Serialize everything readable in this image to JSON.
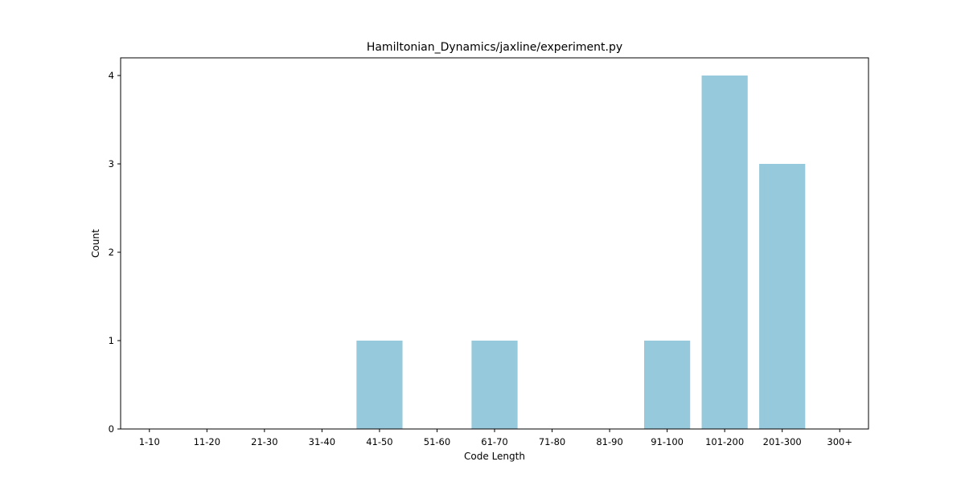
{
  "chart_data": {
    "type": "bar",
    "title": "Hamiltonian_Dynamics/jaxline/experiment.py",
    "xlabel": "Code Length",
    "ylabel": "Count",
    "categories": [
      "1-10",
      "11-20",
      "21-30",
      "31-40",
      "41-50",
      "51-60",
      "61-70",
      "71-80",
      "81-90",
      "91-100",
      "101-200",
      "201-300",
      "300+"
    ],
    "values": [
      0,
      0,
      0,
      0,
      1,
      0,
      1,
      0,
      0,
      1,
      4,
      3,
      0
    ],
    "ylim": [
      0,
      4.2
    ],
    "yticks": [
      0,
      1,
      2,
      3,
      4
    ],
    "bar_color": "#96c9dc",
    "grid": false,
    "legend": "none"
  }
}
